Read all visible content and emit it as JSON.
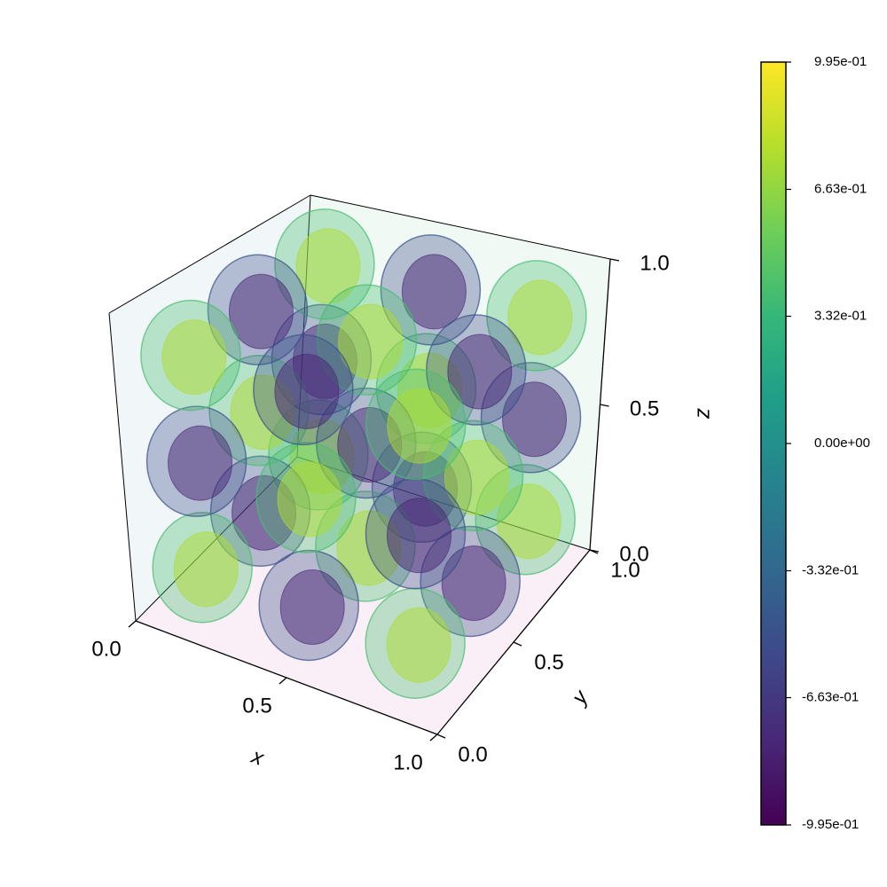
{
  "chart_data": {
    "type": "isosurface3d",
    "xlabel": "x",
    "ylabel": "y",
    "zlabel": "z",
    "xlim": [
      0,
      1
    ],
    "ylim": [
      0,
      1
    ],
    "zlim": [
      0,
      1
    ],
    "xticks": [
      {
        "value": 0,
        "label": "0.0"
      },
      {
        "value": 0.5,
        "label": "0.5"
      },
      {
        "value": 1,
        "label": "1.0"
      }
    ],
    "yticks": [
      {
        "value": 0,
        "label": "0.0"
      },
      {
        "value": 0.5,
        "label": "0.5"
      },
      {
        "value": 1,
        "label": "1.0"
      }
    ],
    "zticks": [
      {
        "value": 0,
        "label": "0.0"
      },
      {
        "value": 0.5,
        "label": "0.5"
      },
      {
        "value": 1,
        "label": "1.0"
      }
    ],
    "isovalues": [
      -0.8,
      -0.5,
      0.4,
      0.75
    ],
    "colormap": [
      "#440154",
      "#482878",
      "#3e4989",
      "#31688e",
      "#26828e",
      "#1f9e89",
      "#35b779",
      "#6ece58",
      "#b5de2b",
      "#fde725"
    ],
    "colorbar": {
      "lim": [
        -0.995,
        0.995
      ],
      "ticks": [
        {
          "value": -0.995,
          "label": "-9.95e-01"
        },
        {
          "value": -0.663,
          "label": "-6.63e-01"
        },
        {
          "value": -0.332,
          "label": "-3.32e-01"
        },
        {
          "value": 0,
          "label": "0.00e+00"
        },
        {
          "value": 0.332,
          "label": "3.32e-01"
        },
        {
          "value": 0.663,
          "label": "6.63e-01"
        },
        {
          "value": 0.995,
          "label": "9.95e-01"
        }
      ]
    }
  }
}
